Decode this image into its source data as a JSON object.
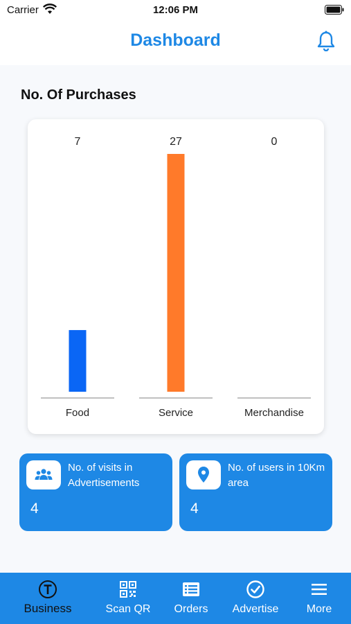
{
  "status": {
    "carrier": "Carrier",
    "time": "12:06 PM"
  },
  "header": {
    "title": "Dashboard"
  },
  "section": {
    "title": "No. Of Purchases"
  },
  "chart_data": {
    "type": "bar",
    "categories": [
      "Food",
      "Service",
      "Merchandise"
    ],
    "values": [
      7,
      27,
      0
    ],
    "colors": [
      "#0a66f5",
      "#ff7a2a",
      "#0a66f5"
    ],
    "ylim": [
      0,
      27
    ]
  },
  "stats": [
    {
      "label": "No. of visits in Advertisements",
      "value": "4",
      "icon": "people-icon"
    },
    {
      "label": "No. of users in 10Km area",
      "value": "4",
      "icon": "location-pin-icon"
    }
  ],
  "nav": {
    "items": [
      {
        "label": "Business",
        "icon": "business-icon",
        "active": true
      },
      {
        "label": "Scan QR",
        "icon": "qr-code-icon",
        "active": false
      },
      {
        "label": "Orders",
        "icon": "orders-icon",
        "active": false
      },
      {
        "label": "Advertise",
        "icon": "check-circle-icon",
        "active": false
      },
      {
        "label": "More",
        "icon": "menu-icon",
        "active": false
      }
    ]
  },
  "colors": {
    "accent": "#1e88e5",
    "food_bar": "#0a66f5",
    "service_bar": "#ff7a2a"
  }
}
